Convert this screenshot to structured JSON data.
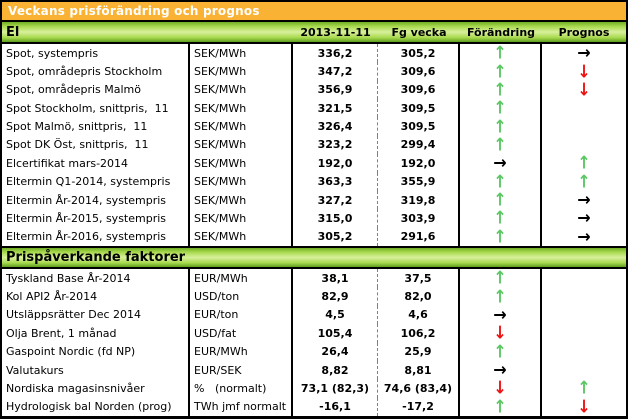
{
  "title": "Veckans prisförändring och prognos",
  "columns": [
    "2013-11-11",
    "Fg vecka",
    "Förändring",
    "Prognos"
  ],
  "colors": {
    "title_bg": "#F9B233",
    "title_text": "#FFFFFF",
    "band_green_dark": "#6FAE23",
    "band_green_light": "#D8F09C",
    "arrow_up": "#5BC763",
    "arrow_down": "#EE1111",
    "arrow_right": "#000000"
  },
  "arrows": {
    "up": {
      "glyph": "↑",
      "color": "#5BC763"
    },
    "down": {
      "glyph": "↓",
      "color": "#EE1111"
    },
    "right": {
      "glyph": "→",
      "color": "#000000"
    }
  },
  "sections": [
    {
      "label": "El",
      "rows": [
        {
          "name": "Spot, systempris",
          "unit": "SEK/MWh",
          "current": "336,2",
          "previous": "305,2",
          "change": "up",
          "prognosis": "right"
        },
        {
          "name": "Spot, områdepris Stockholm",
          "unit": "SEK/MWh",
          "current": "347,2",
          "previous": "309,6",
          "change": "up",
          "prognosis": "down"
        },
        {
          "name": "Spot, områdepris Malmö",
          "unit": "SEK/MWh",
          "current": "356,9",
          "previous": "309,6",
          "change": "up",
          "prognosis": "down"
        },
        {
          "name": "Spot Stockholm, snittpris,  11",
          "unit": "SEK/MWh",
          "current": "321,5",
          "previous": "309,5",
          "change": "up",
          "prognosis": ""
        },
        {
          "name": "Spot Malmö, snittpris,  11",
          "unit": "SEK/MWh",
          "current": "326,4",
          "previous": "309,5",
          "change": "up",
          "prognosis": ""
        },
        {
          "name": "Spot DK Öst, snittpris,  11",
          "unit": "SEK/MWh",
          "current": "323,2",
          "previous": "299,4",
          "change": "up",
          "prognosis": ""
        },
        {
          "name": "Elcertifikat mars-2014",
          "unit": "SEK/MWh",
          "current": "192,0",
          "previous": "192,0",
          "change": "right",
          "prognosis": "up"
        },
        {
          "name": "Eltermin Q1-2014, systempris",
          "unit": "SEK/MWh",
          "current": "363,3",
          "previous": "355,9",
          "change": "up",
          "prognosis": "up"
        },
        {
          "name": "Eltermin År-2014, systempris",
          "unit": "SEK/MWh",
          "current": "327,2",
          "previous": "319,8",
          "change": "up",
          "prognosis": "right"
        },
        {
          "name": "Eltermin År-2015, systempris",
          "unit": "SEK/MWh",
          "current": "315,0",
          "previous": "303,9",
          "change": "up",
          "prognosis": "right"
        },
        {
          "name": "Eltermin År-2016, systempris",
          "unit": "SEK/MWh",
          "current": "305,2",
          "previous": "291,6",
          "change": "up",
          "prognosis": "right"
        }
      ]
    },
    {
      "label": "Prispåverkande faktorer",
      "rows": [
        {
          "name": "Tyskland Base År-2014",
          "unit": "EUR/MWh",
          "current": "38,1",
          "previous": "37,5",
          "change": "up",
          "prognosis": ""
        },
        {
          "name": "Kol API2 År-2014",
          "unit": "USD/ton",
          "current": "82,9",
          "previous": "82,0",
          "change": "up",
          "prognosis": ""
        },
        {
          "name": "Utsläppsrätter Dec 2014",
          "unit": "EUR/ton",
          "current": "4,5",
          "previous": "4,6",
          "change": "right",
          "prognosis": ""
        },
        {
          "name": "Olja Brent, 1 månad",
          "unit": "USD/fat",
          "current": "105,4",
          "previous": "106,2",
          "change": "down",
          "prognosis": ""
        },
        {
          "name": "Gaspoint Nordic (fd NP)",
          "unit": "EUR/MWh",
          "current": "26,4",
          "previous": "25,9",
          "change": "up",
          "prognosis": ""
        },
        {
          "name": "Valutakurs",
          "unit": "EUR/SEK",
          "current": "8,82",
          "previous": "8,81",
          "change": "right",
          "prognosis": ""
        },
        {
          "name": "Nordiska magasinsnivåer",
          "unit": "%   (normalt)",
          "current": "73,1 (82,3)",
          "previous": "74,6 (83,4)",
          "change": "down",
          "prognosis": "up"
        },
        {
          "name": "Hydrologisk bal Norden (prog)",
          "unit": "TWh jmf normalt",
          "current": "-16,1",
          "previous": "-17,2",
          "change": "up",
          "prognosis": "down"
        }
      ]
    }
  ]
}
